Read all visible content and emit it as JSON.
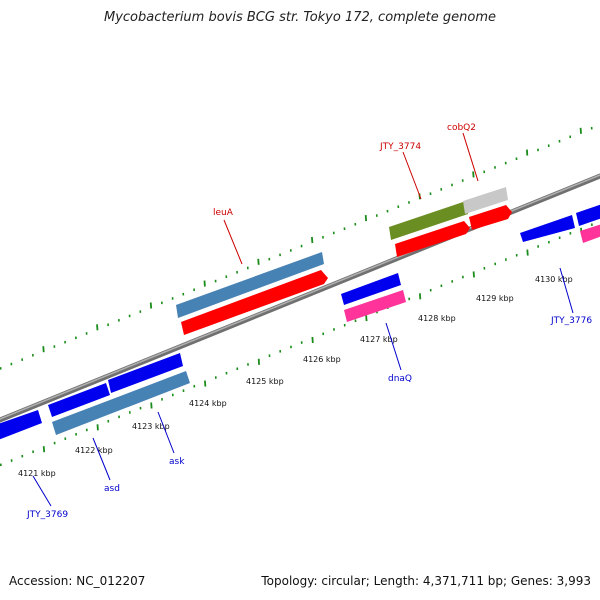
{
  "title": "Mycobacterium bovis BCG str. Tokyo 172, complete genome",
  "footer": {
    "accession": "Accession: NC_012207",
    "stats": "Topology: circular; Length: 4,371,711 bp; Genes: 3,993"
  },
  "colors": {
    "backbone": "#8a8a8a",
    "ruler": "#1a8c1a",
    "forward_cds": "#ff0000",
    "reverse_cds": "#0000ee",
    "forward_gene": "#4682b4",
    "reverse_gene": "#4682b4",
    "rrna_like": "#ff3399",
    "pseudo": "#6b8e23",
    "other": "#c8c8c8",
    "label_forward": "#cc0000",
    "label_reverse": "#0000cc"
  },
  "tick_labels": [
    "4121 kbp",
    "4122 kbp",
    "4123 kbp",
    "4124 kbp",
    "4125 kbp",
    "4126 kbp",
    "4127 kbp",
    "4128 kbp",
    "4129 kbp",
    "4130 kbp"
  ],
  "gene_labels": {
    "leuA": "leuA",
    "JTY_3774": "JTY_3774",
    "cobQ2": "cobQ2",
    "dnaQ": "dnaQ",
    "JTY_3776": "JTY_3776",
    "ask": "ask",
    "asd": "asd",
    "JTY_3769": "JTY_3769"
  }
}
